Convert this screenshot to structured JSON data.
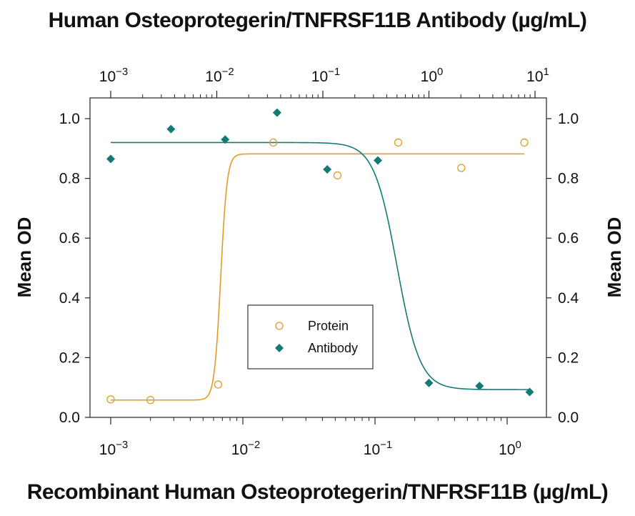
{
  "chart_data": {
    "type": "scatter",
    "top_xlabel": "Human Osteoprotegerin/TNFRSF11B Antibody (µg/mL)",
    "bottom_xlabel": "Recombinant Human Osteoprotegerin/TNFRSF11B (µg/mL)",
    "ylabel_left": "Mean OD",
    "ylabel_right": "Mean OD",
    "ylim": [
      0,
      1.0
    ],
    "yticks": [
      "0.0",
      "0.2",
      "0.4",
      "0.6",
      "0.8",
      "1.0"
    ],
    "bottom_xaxis": {
      "scale": "log",
      "range": [
        0.001,
        1.5
      ],
      "ticks": [
        "10^-3",
        "10^-2",
        "10^-1",
        "10^0"
      ]
    },
    "top_xaxis": {
      "scale": "log",
      "range": [
        0.001,
        10
      ],
      "ticks": [
        "10^-3",
        "10^-2",
        "10^-1",
        "10^0",
        "10^1"
      ]
    },
    "legend": {
      "position": "center",
      "entries": [
        "Protein",
        "Antibody"
      ]
    },
    "series": [
      {
        "name": "Protein",
        "axis": "bottom",
        "marker": "open-circle",
        "color": "#E39A25",
        "x": [
          0.001,
          0.002,
          0.0065,
          0.017,
          0.052,
          0.15,
          0.45,
          1.35
        ],
        "y": [
          0.06,
          0.058,
          0.11,
          0.92,
          0.81,
          0.92,
          0.835,
          0.92
        ],
        "fit": {
          "bottom": 0.058,
          "top": 0.882,
          "ec50": 0.0068,
          "hill": 18
        }
      },
      {
        "name": "Antibody",
        "axis": "top",
        "marker": "filled-diamond",
        "color": "#137A74",
        "x": [
          0.001,
          0.0037,
          0.012,
          0.037,
          0.11,
          0.33,
          1.0,
          3.0,
          8.9
        ],
        "y": [
          0.865,
          0.965,
          0.93,
          1.02,
          0.83,
          0.86,
          0.115,
          0.105,
          0.085
        ],
        "fit": {
          "bottom": 0.093,
          "top": 0.92,
          "ec50": 0.5,
          "hill": -4
        }
      }
    ]
  }
}
